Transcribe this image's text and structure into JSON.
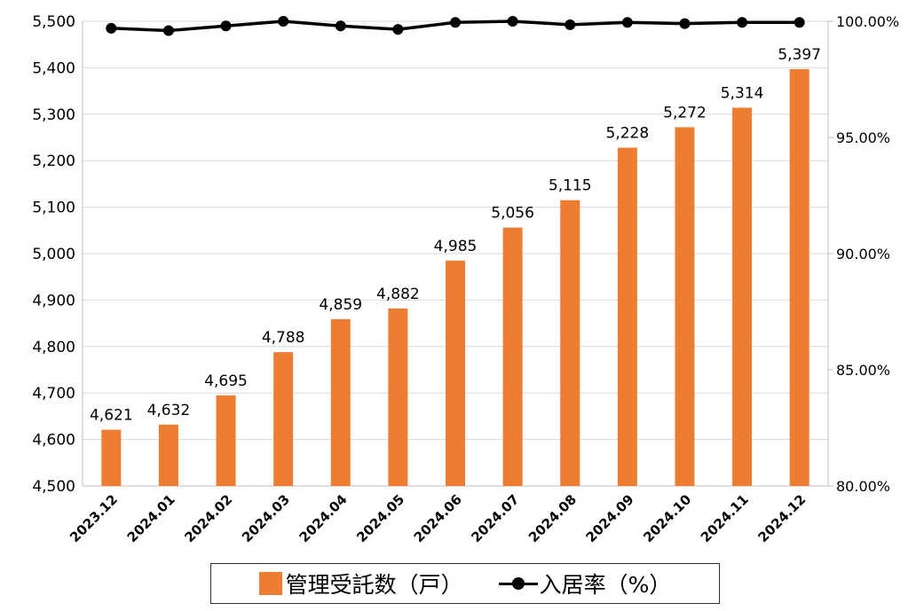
{
  "chart_data": {
    "type": "bar+line",
    "categories": [
      "2023.12",
      "2024.01",
      "2024.02",
      "2024.03",
      "2024.04",
      "2024.05",
      "2024.06",
      "2024.07",
      "2024.08",
      "2024.09",
      "2024.10",
      "2024.11",
      "2024.12"
    ],
    "series": [
      {
        "name": "管理受託数（戸）",
        "type": "bar",
        "axis": "left",
        "color": "#ED7D31",
        "values": [
          4621,
          4632,
          4695,
          4788,
          4859,
          4882,
          4985,
          5056,
          5115,
          5228,
          5272,
          5314,
          5397
        ],
        "labels": [
          "4,621",
          "4,632",
          "4,695",
          "4,788",
          "4,859",
          "4,882",
          "4,985",
          "5,056",
          "5,115",
          "5,228",
          "5,272",
          "5,314",
          "5,397"
        ]
      },
      {
        "name": "入居率（%）",
        "type": "line",
        "axis": "right",
        "color": "#000000",
        "values": [
          99.7,
          99.6,
          99.8,
          100.0,
          99.8,
          99.65,
          99.95,
          100.0,
          99.85,
          99.95,
          99.9,
          99.95,
          99.95
        ]
      }
    ],
    "left_axis": {
      "min": 4500,
      "max": 5500,
      "ticks": [
        4500,
        4600,
        4700,
        4800,
        4900,
        5000,
        5100,
        5200,
        5300,
        5400,
        5500
      ],
      "tick_labels": [
        "4,500",
        "4,600",
        "4,700",
        "4,800",
        "4,900",
        "5,000",
        "5,100",
        "5,200",
        "5,300",
        "5,400",
        "5,500"
      ]
    },
    "right_axis": {
      "min": 80,
      "max": 100,
      "ticks": [
        80,
        85,
        90,
        95,
        100
      ],
      "tick_labels": [
        "80.00%",
        "85.00%",
        "90.00%",
        "95.00%",
        "100.00%"
      ]
    },
    "grid": true,
    "legend_position": "bottom"
  }
}
